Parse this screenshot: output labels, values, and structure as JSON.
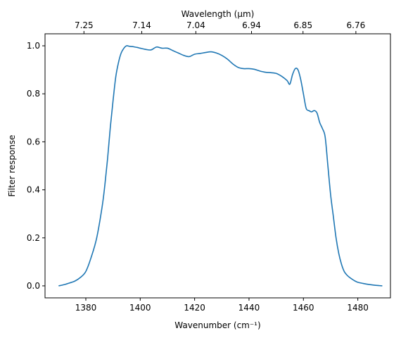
{
  "chart_data": {
    "type": "line",
    "xlabel": "Wavenumber (cm⁻¹)",
    "ylabel": "Filter response",
    "top_xlabel": "Wavelength (μm)",
    "xlim": [
      1365,
      1492
    ],
    "ylim": [
      -0.05,
      1.05
    ],
    "x_ticks": [
      1380,
      1400,
      1420,
      1440,
      1460,
      1480
    ],
    "x_tick_labels": [
      "1380",
      "1400",
      "1420",
      "1440",
      "1460",
      "1480"
    ],
    "y_ticks": [
      0.0,
      0.2,
      0.4,
      0.6,
      0.8,
      1.0
    ],
    "y_tick_labels": [
      "0.0",
      "0.2",
      "0.4",
      "0.6",
      "0.8",
      "1.0"
    ],
    "top_ticks": [
      {
        "wavelength_um": 7.25,
        "label": "7.25"
      },
      {
        "wavelength_um": 7.14,
        "label": "7.14"
      },
      {
        "wavelength_um": 7.04,
        "label": "7.04"
      },
      {
        "wavelength_um": 6.94,
        "label": "6.94"
      },
      {
        "wavelength_um": 6.85,
        "label": "6.85"
      },
      {
        "wavelength_um": 6.76,
        "label": "6.76"
      }
    ],
    "grid": false,
    "color": "#1f77b4",
    "series": [
      {
        "x": [
          1370,
          1372,
          1374,
          1376,
          1378,
          1380,
          1382,
          1384,
          1386,
          1387,
          1388,
          1389,
          1390,
          1391,
          1392,
          1393,
          1394,
          1395,
          1396,
          1397,
          1398,
          1399,
          1400,
          1402,
          1404,
          1406,
          1408,
          1410,
          1412,
          1414,
          1416,
          1418,
          1420,
          1422,
          1424,
          1426,
          1428,
          1430,
          1432,
          1434,
          1436,
          1438,
          1440,
          1442,
          1444,
          1446,
          1448,
          1450,
          1452,
          1454,
          1455,
          1456,
          1457,
          1458,
          1459,
          1460,
          1461,
          1462,
          1463,
          1464,
          1465,
          1466,
          1467,
          1468,
          1469,
          1470,
          1471,
          1472,
          1473,
          1474,
          1475,
          1476,
          1477,
          1478,
          1479,
          1480,
          1482,
          1484,
          1486,
          1488,
          1489
        ],
        "y": [
          0.0,
          0.005,
          0.012,
          0.02,
          0.035,
          0.06,
          0.12,
          0.2,
          0.33,
          0.42,
          0.53,
          0.66,
          0.77,
          0.87,
          0.93,
          0.97,
          0.99,
          1.0,
          0.998,
          0.997,
          0.995,
          0.993,
          0.99,
          0.985,
          0.983,
          0.995,
          0.99,
          0.99,
          0.98,
          0.97,
          0.96,
          0.955,
          0.965,
          0.968,
          0.972,
          0.975,
          0.97,
          0.96,
          0.945,
          0.925,
          0.91,
          0.905,
          0.905,
          0.902,
          0.895,
          0.89,
          0.888,
          0.885,
          0.873,
          0.855,
          0.84,
          0.88,
          0.905,
          0.9,
          0.86,
          0.8,
          0.74,
          0.73,
          0.725,
          0.73,
          0.72,
          0.68,
          0.655,
          0.62,
          0.5,
          0.38,
          0.29,
          0.2,
          0.135,
          0.09,
          0.06,
          0.045,
          0.035,
          0.027,
          0.02,
          0.015,
          0.01,
          0.006,
          0.003,
          0.001,
          0.0
        ]
      }
    ]
  }
}
